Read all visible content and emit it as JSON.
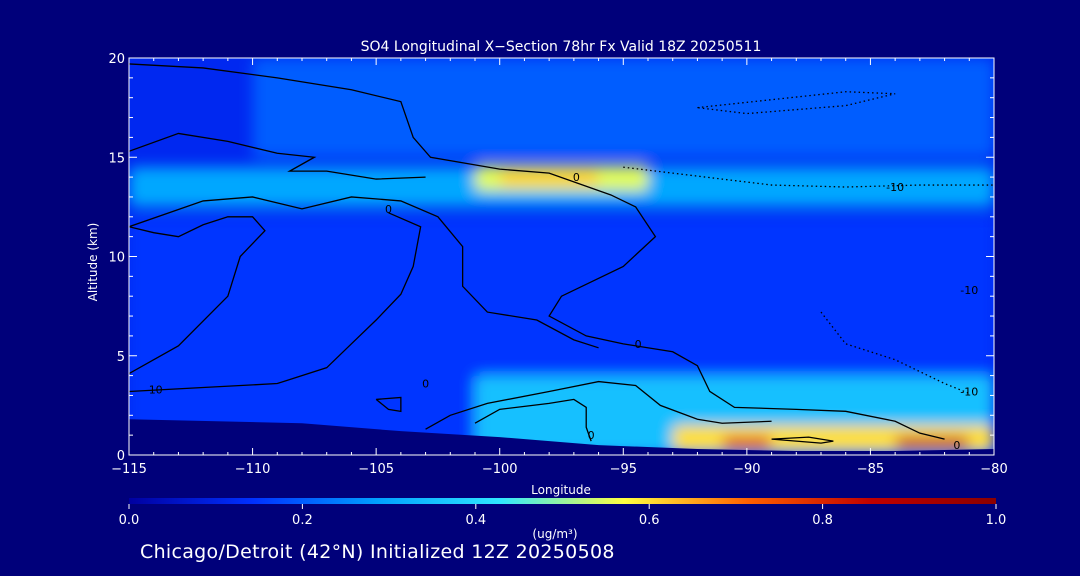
{
  "chart_data": {
    "type": "heatmap",
    "title": "SO4 Longitudinal X−Section 78hr  Fx Valid 18Z 20250511",
    "xlabel": "Longitude",
    "ylabel": "Altitude (km)",
    "xlim": [
      -115,
      -80
    ],
    "ylim": [
      0,
      20
    ],
    "x_ticks": [
      -115,
      -110,
      -105,
      -100,
      -95,
      -90,
      -85,
      -80
    ],
    "x_tick_labels": [
      "−115",
      "−110",
      "−105",
      "−100",
      "−95",
      "−90",
      "−85",
      "−80"
    ],
    "y_ticks": [
      0,
      5,
      10,
      15,
      20
    ],
    "y_tick_labels": [
      "0",
      "5",
      "10",
      "15",
      "20"
    ],
    "colorbar": {
      "min": 0.0,
      "max": 1.0,
      "ticks": [
        0.0,
        0.2,
        0.4,
        0.6,
        0.8,
        1.0
      ],
      "tick_labels": [
        "0.0",
        "0.2",
        "0.4",
        "0.6",
        "0.8",
        "1.0"
      ],
      "unit": "(ug/m³)",
      "colors": [
        "#0000a0",
        "#0030ff",
        "#00a0ff",
        "#30e8ff",
        "#ffff40",
        "#ff6000",
        "#c00000",
        "#8b0000"
      ]
    },
    "concentration_features": [
      {
        "lon": [
          -115,
          -80
        ],
        "alt": [
          12.5,
          14.5
        ],
        "value": 0.3
      },
      {
        "lon": [
          -101,
          -94
        ],
        "alt": [
          13.3,
          14.6
        ],
        "value": 0.55
      },
      {
        "lon": [
          -100,
          -96
        ],
        "alt": [
          13.6,
          14.3
        ],
        "value": 0.62
      },
      {
        "lon": [
          -110,
          -80
        ],
        "alt": [
          15,
          20
        ],
        "value": 0.2
      },
      {
        "lon": [
          -115,
          -80
        ],
        "alt": [
          0,
          12
        ],
        "value": 0.15
      },
      {
        "lon": [
          -101,
          -80
        ],
        "alt": [
          0,
          4
        ],
        "value": 0.35
      },
      {
        "lon": [
          -93,
          -80
        ],
        "alt": [
          0.2,
          1.5
        ],
        "value": 0.6
      },
      {
        "lon": [
          -91,
          -89
        ],
        "alt": [
          0.3,
          0.9
        ],
        "value": 0.8
      },
      {
        "lon": [
          -84,
          -81
        ],
        "alt": [
          0.3,
          0.9
        ],
        "value": 0.85
      }
    ],
    "terrain": [
      {
        "lon": -115,
        "alt": 1.8
      },
      {
        "lon": -108,
        "alt": 1.6
      },
      {
        "lon": -104,
        "alt": 1.2
      },
      {
        "lon": -100,
        "alt": 0.9
      },
      {
        "lon": -96,
        "alt": 0.5
      },
      {
        "lon": -92,
        "alt": 0.3
      },
      {
        "lon": -88,
        "alt": 0.2
      },
      {
        "lon": -84,
        "alt": 0.2
      },
      {
        "lon": -80,
        "alt": 0.3
      }
    ],
    "contours": [
      {
        "style": "solid",
        "points": [
          [
            -115,
            19.7
          ],
          [
            -112,
            19.5
          ],
          [
            -109,
            19.0
          ],
          [
            -106,
            18.4
          ],
          [
            -104,
            17.8
          ],
          [
            -103.5,
            16
          ],
          [
            -102.8,
            15
          ],
          [
            -100,
            14.4
          ],
          [
            -98,
            14.2
          ],
          [
            -95.5,
            13.1
          ],
          [
            -94.5,
            12.5
          ],
          [
            -93.7,
            11
          ],
          [
            -95,
            9.5
          ],
          [
            -97.5,
            8
          ],
          [
            -98,
            7
          ],
          [
            -96.5,
            6
          ],
          [
            -95,
            5.6
          ],
          [
            -93,
            5.2
          ],
          [
            -92,
            4.5
          ],
          [
            -91.5,
            3.2
          ],
          [
            -90.5,
            2.4
          ],
          [
            -88,
            2.3
          ],
          [
            -86,
            2.2
          ],
          [
            -84,
            1.7
          ],
          [
            -83,
            1.1
          ],
          [
            -82,
            0.8
          ]
        ]
      },
      {
        "style": "solid",
        "points": [
          [
            -115,
            11.5
          ],
          [
            -112,
            12.8
          ],
          [
            -110,
            13.0
          ],
          [
            -108,
            12.4
          ],
          [
            -106,
            13.0
          ],
          [
            -104,
            12.8
          ],
          [
            -102.5,
            12.0
          ],
          [
            -101.5,
            10.5
          ],
          [
            -101.5,
            8.5
          ],
          [
            -100.5,
            7.2
          ],
          [
            -98.5,
            6.8
          ],
          [
            -97,
            5.8
          ],
          [
            -96,
            5.4
          ]
        ]
      },
      {
        "style": "solid",
        "points": [
          [
            -115,
            15.3
          ],
          [
            -113,
            16.2
          ],
          [
            -111,
            15.8
          ],
          [
            -109,
            15.2
          ],
          [
            -107.5,
            15.0
          ],
          [
            -108.5,
            14.3
          ],
          [
            -107,
            14.3
          ],
          [
            -105,
            13.9
          ],
          [
            -103,
            14.0
          ]
        ]
      },
      {
        "style": "solid",
        "points": [
          [
            -115,
            4.1
          ],
          [
            -113,
            5.5
          ],
          [
            -111,
            8.0
          ],
          [
            -110.5,
            10.0
          ],
          [
            -109.5,
            11.3
          ],
          [
            -110,
            12.0
          ],
          [
            -111,
            12.0
          ],
          [
            -112,
            11.6
          ],
          [
            -113,
            11.0
          ],
          [
            -114,
            11.2
          ],
          [
            -115,
            11.5
          ]
        ]
      },
      {
        "style": "solid",
        "points": [
          [
            -115,
            3.2
          ],
          [
            -112,
            3.4
          ],
          [
            -109,
            3.6
          ],
          [
            -107,
            4.4
          ],
          [
            -106,
            5.6
          ],
          [
            -105,
            6.8
          ],
          [
            -104,
            8.1
          ],
          [
            -103.5,
            9.5
          ],
          [
            -103.2,
            11.5
          ],
          [
            -104.5,
            12.2
          ]
        ]
      },
      {
        "style": "solid",
        "points": [
          [
            -101,
            1.6
          ],
          [
            -100,
            2.3
          ],
          [
            -98,
            2.6
          ],
          [
            -97,
            2.8
          ],
          [
            -96.5,
            2.4
          ],
          [
            -96.5,
            1.4
          ],
          [
            -96.3,
            0.7
          ]
        ]
      },
      {
        "style": "solid",
        "points": [
          [
            -103,
            1.3
          ],
          [
            -102,
            2.0
          ],
          [
            -100.5,
            2.6
          ],
          [
            -98,
            3.2
          ],
          [
            -96,
            3.7
          ],
          [
            -94.5,
            3.5
          ],
          [
            -93.5,
            2.5
          ],
          [
            -92,
            1.8
          ],
          [
            -91,
            1.6
          ],
          [
            -89,
            1.7
          ]
        ]
      },
      {
        "style": "solid",
        "points": [
          [
            -89,
            0.8
          ],
          [
            -87,
            0.6
          ],
          [
            -86.5,
            0.7
          ],
          [
            -87.5,
            0.9
          ],
          [
            -89,
            0.8
          ]
        ]
      },
      {
        "style": "solid",
        "points": [
          [
            -105,
            2.8
          ],
          [
            -104.5,
            2.3
          ],
          [
            -104,
            2.2
          ],
          [
            -104,
            2.9
          ],
          [
            -105,
            2.8
          ]
        ]
      },
      {
        "style": "dotted",
        "points": [
          [
            -95,
            14.5
          ],
          [
            -93,
            14.2
          ],
          [
            -91,
            13.9
          ],
          [
            -89,
            13.6
          ],
          [
            -86,
            13.5
          ],
          [
            -83,
            13.6
          ],
          [
            -80,
            13.6
          ]
        ]
      },
      {
        "style": "dotted",
        "points": [
          [
            -92,
            17.5
          ],
          [
            -89,
            17.9
          ],
          [
            -86,
            18.3
          ],
          [
            -84,
            18.2
          ],
          [
            -86,
            17.6
          ],
          [
            -90,
            17.2
          ],
          [
            -92,
            17.5
          ]
        ]
      },
      {
        "style": "dotted",
        "points": [
          [
            -87,
            7.2
          ],
          [
            -86,
            5.6
          ],
          [
            -84,
            4.8
          ],
          [
            -83,
            4.2
          ],
          [
            -82,
            3.6
          ],
          [
            -81,
            3.1
          ]
        ]
      }
    ],
    "contour_labels": [
      {
        "lon": -96.9,
        "alt": 14.0,
        "text": "0"
      },
      {
        "lon": -104.5,
        "alt": 12.4,
        "text": "0"
      },
      {
        "lon": -94.4,
        "alt": 5.6,
        "text": "0"
      },
      {
        "lon": -103.0,
        "alt": 3.6,
        "text": "0"
      },
      {
        "lon": -114.0,
        "alt": 3.3,
        "text": "-10"
      },
      {
        "lon": -96.3,
        "alt": 1.0,
        "text": "0"
      },
      {
        "lon": -84.0,
        "alt": 13.5,
        "text": "-10"
      },
      {
        "lon": -81.0,
        "alt": 8.3,
        "text": "-10"
      },
      {
        "lon": -81.0,
        "alt": 3.2,
        "text": "-10"
      },
      {
        "lon": -81.5,
        "alt": 0.5,
        "text": "0"
      }
    ]
  },
  "footer": {
    "caption": "Chicago/Detroit (42°N) Initialized 12Z 20250508"
  },
  "colors": {
    "background": "#00007a",
    "contour": "#000000",
    "text": "#ffffff"
  }
}
